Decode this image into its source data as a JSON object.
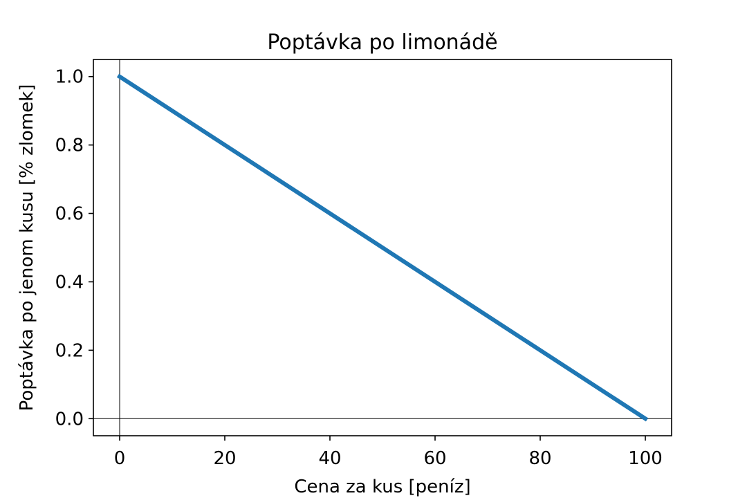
{
  "chart_data": {
    "type": "line",
    "title": "Poptávka po limonádě",
    "xlabel": "Cena za kus [peníz]",
    "ylabel": "Poptávka po jenom kusu [% zlomek]",
    "xlim": [
      -5,
      105
    ],
    "ylim": [
      -0.05,
      1.05
    ],
    "xticks": [
      0,
      20,
      40,
      60,
      80,
      100
    ],
    "yticks": [
      0.0,
      0.2,
      0.4,
      0.6,
      0.8,
      1.0
    ],
    "xtick_labels": [
      "0",
      "20",
      "40",
      "60",
      "80",
      "100"
    ],
    "ytick_labels": [
      "0.0",
      "0.2",
      "0.4",
      "0.6",
      "0.8",
      "1.0"
    ],
    "reference_lines": {
      "x": 0,
      "y": 0
    },
    "grid": false,
    "series": [
      {
        "color": "#1f77b4",
        "x": [
          0,
          100
        ],
        "y": [
          1.0,
          0.0
        ]
      }
    ]
  }
}
